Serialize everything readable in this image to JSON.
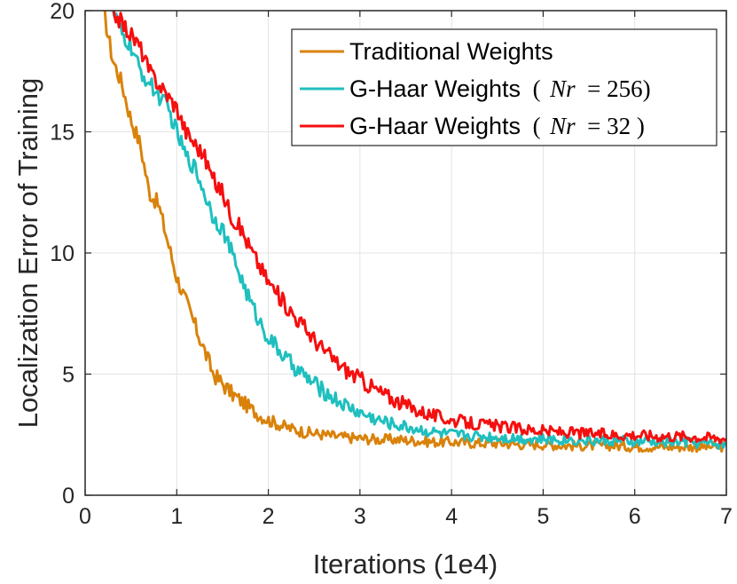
{
  "chart_data": {
    "type": "line",
    "xlabel": "Iterations (1e4)",
    "ylabel": "Localization Error of Training",
    "xlim": [
      0,
      7
    ],
    "ylim": [
      0,
      20
    ],
    "xticks": [
      0,
      1,
      2,
      3,
      4,
      5,
      6,
      7
    ],
    "yticks": [
      0,
      5,
      10,
      15,
      20
    ],
    "grid": true,
    "legend_position": "top-right",
    "x": [
      0.2,
      0.3,
      0.4,
      0.5,
      0.6,
      0.7,
      0.8,
      0.9,
      1.0,
      1.1,
      1.2,
      1.3,
      1.4,
      1.5,
      1.6,
      1.7,
      1.8,
      1.9,
      2.0,
      2.2,
      2.4,
      2.6,
      2.8,
      3.0,
      3.2,
      3.4,
      3.6,
      3.8,
      4.0,
      4.25,
      4.5,
      4.75,
      5.0,
      5.25,
      5.5,
      5.75,
      6.0,
      6.25,
      6.5,
      6.75,
      7.0
    ],
    "series": [
      {
        "name": "Traditional Weights",
        "color": "#D9820B",
        "values": [
          20.0,
          18.0,
          17.0,
          15.5,
          14.5,
          12.5,
          12.0,
          10.5,
          9.0,
          8.0,
          7.0,
          6.0,
          5.0,
          4.6,
          4.2,
          3.9,
          3.6,
          3.3,
          3.1,
          2.8,
          2.6,
          2.5,
          2.4,
          2.35,
          2.3,
          2.3,
          2.25,
          2.2,
          2.2,
          2.15,
          2.15,
          2.1,
          2.1,
          2.05,
          2.05,
          2.05,
          2.0,
          2.0,
          2.0,
          2.0,
          2.0
        ],
        "noise": 0.35
      },
      {
        "name": "G-Haar Weights ( Nr = 256)",
        "label_text": "G-Haar Weights",
        "label_math_open": "(",
        "label_math_var": "Nr",
        "label_math_rest": "= 256)",
        "color": "#1FBFBF",
        "values": [
          20.5,
          20.0,
          19.0,
          18.5,
          17.5,
          17.0,
          16.5,
          16.0,
          15.0,
          14.0,
          13.5,
          12.5,
          11.5,
          11.0,
          10.0,
          9.0,
          8.0,
          7.2,
          6.5,
          5.6,
          4.9,
          4.3,
          3.8,
          3.4,
          3.1,
          2.9,
          2.75,
          2.6,
          2.5,
          2.45,
          2.4,
          2.35,
          2.3,
          2.3,
          2.25,
          2.25,
          2.2,
          2.2,
          2.2,
          2.15,
          2.1
        ],
        "noise": 0.35
      },
      {
        "name": "G-Haar Weights ( Nr = 32 )",
        "label_text": "G-Haar Weights",
        "label_math_open": "(",
        "label_math_var": "Nr",
        "label_math_rest": "= 32 )",
        "color": "#F50F0F",
        "values": [
          20.5,
          20.0,
          19.5,
          19.0,
          18.5,
          17.5,
          17.0,
          16.5,
          16.0,
          15.0,
          14.5,
          14.0,
          13.0,
          12.5,
          11.5,
          11.0,
          10.2,
          9.5,
          8.8,
          7.8,
          6.9,
          6.0,
          5.3,
          4.8,
          4.3,
          3.9,
          3.55,
          3.3,
          3.1,
          2.95,
          2.85,
          2.75,
          2.65,
          2.6,
          2.55,
          2.5,
          2.5,
          2.45,
          2.45,
          2.4,
          2.35
        ],
        "noise": 0.35
      }
    ]
  },
  "legend": {
    "item1": "Traditional Weights",
    "item2_text": "G-Haar Weights",
    "item2_open": "(",
    "item2_var": "Nr",
    "item2_rest": "= 256)",
    "item3_text": "G-Haar Weights",
    "item3_open": "(",
    "item3_var": "Nr",
    "item3_rest": "= 32 )"
  }
}
